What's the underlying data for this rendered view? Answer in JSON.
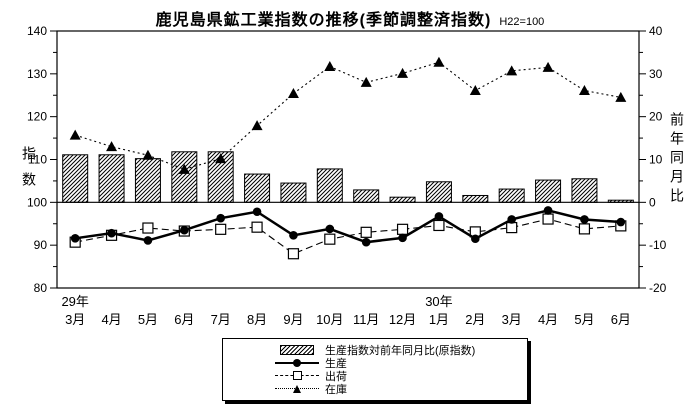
{
  "title": "鹿児島県鉱工業指数の推移(季節調整済指数)",
  "subtitle": "H22=100",
  "colors": {
    "ink": "#000000",
    "background": "#ffffff"
  },
  "chart_data": {
    "type": "bar+line combo (bars on right axis, lines on left axis)",
    "categories": [
      "3月",
      "4月",
      "5月",
      "6月",
      "7月",
      "8月",
      "9月",
      "10月",
      "11月",
      "12月",
      "1月",
      "2月",
      "3月",
      "4月",
      "5月",
      "6月"
    ],
    "year_labels": [
      {
        "text": "29年",
        "index": 0
      },
      {
        "text": "30年",
        "index": 10
      }
    ],
    "left_axis": {
      "label": "指数",
      "min": 80,
      "max": 140,
      "tick_step": 10,
      "minor_step": 5,
      "tick_labels": [
        "80",
        "90",
        "100",
        "110",
        "120",
        "130",
        "140"
      ]
    },
    "right_axis": {
      "label": "前年同月比",
      "min": -20,
      "max": 40,
      "tick_step": 10,
      "minor_step": 5,
      "tick_labels": [
        "-20",
        "-10",
        "0",
        "10",
        "20",
        "30",
        "40"
      ]
    },
    "grid": "off",
    "legend_position": "bottom-center",
    "series": [
      {
        "name": "生産指数対前年同月比(原指数)",
        "type": "bar",
        "axis": "right",
        "values": [
          11.1,
          11.1,
          10.2,
          11.8,
          11.8,
          6.6,
          4.5,
          7.8,
          2.9,
          1.2,
          4.8,
          1.6,
          3.1,
          5.2,
          5.5,
          0.5
        ]
      },
      {
        "name": "生産",
        "type": "line",
        "marker": "circle",
        "dash": "solid",
        "axis": "left",
        "values": [
          91.6,
          92.8,
          91.1,
          93.5,
          96.3,
          97.8,
          92.3,
          93.8,
          90.7,
          91.7,
          96.7,
          91.5,
          96.0,
          98.1,
          96.0,
          95.4
        ]
      },
      {
        "name": "出荷",
        "type": "line",
        "marker": "square",
        "dash": "dashed",
        "axis": "left",
        "values": [
          90.7,
          92.3,
          94.0,
          93.3,
          93.7,
          94.2,
          88.0,
          91.4,
          93.0,
          93.7,
          94.6,
          93.1,
          94.1,
          96.1,
          93.8,
          94.5
        ]
      },
      {
        "name": "在庫",
        "type": "line",
        "marker": "triangle",
        "dash": "dotted",
        "axis": "left",
        "values": [
          115.7,
          113.0,
          111.0,
          107.7,
          110.2,
          117.9,
          125.4,
          131.7,
          128.0,
          130.1,
          132.7,
          126.1,
          130.7,
          131.5,
          126.1,
          124.5
        ]
      }
    ]
  }
}
